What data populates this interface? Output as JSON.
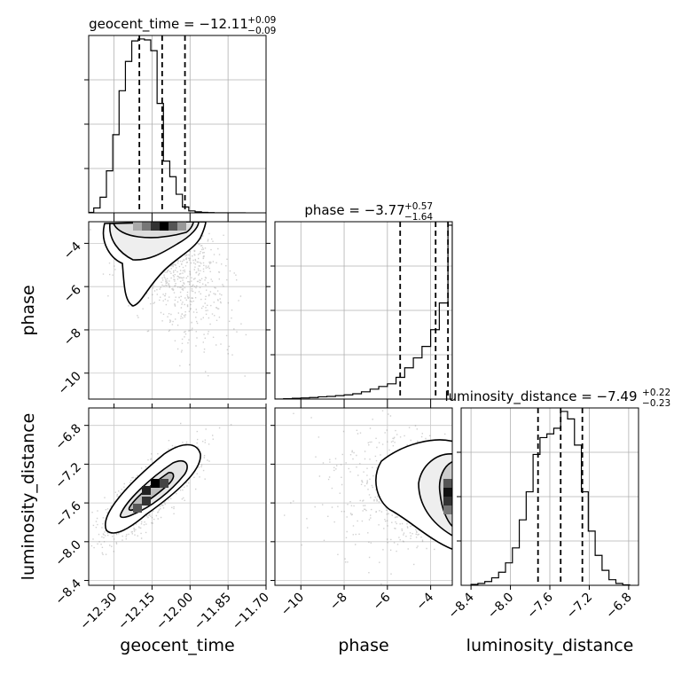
{
  "chart_data": [
    {
      "type": "histogram",
      "param": "geocent_time",
      "title": {
        "prefix": "geocent_time = ",
        "median": "−12.11",
        "plus": "+0.09",
        "minus": "−0.09"
      },
      "xlim": [
        -12.4,
        -11.7
      ],
      "bin_edges": [
        -12.4,
        -12.38,
        -12.355,
        -12.33,
        -12.305,
        -12.28,
        -12.255,
        -12.23,
        -12.205,
        -12.18,
        -12.155,
        -12.13,
        -12.105,
        -12.08,
        -12.055,
        -12.03,
        -12.005,
        -11.98,
        -11.955,
        -11.93,
        -11.905,
        -11.88,
        -11.855,
        -11.83,
        -11.805,
        -11.78
      ],
      "counts": [
        0.5,
        5,
        16,
        43,
        80,
        125,
        155,
        176,
        178,
        177,
        166,
        112,
        53,
        37,
        19,
        6,
        2,
        1,
        0.5,
        0.2,
        0,
        0,
        0,
        0,
        0
      ],
      "quantiles": [
        -12.2,
        -12.11,
        -12.02
      ]
    },
    {
      "type": "histogram",
      "param": "phase",
      "title": {
        "prefix": "phase = ",
        "median": "−3.77",
        "plus": "+0.57",
        "minus": "−1.64"
      },
      "xlim": [
        -11.2,
        -3.0
      ],
      "bin_edges": [
        -11.2,
        -10.8,
        -10.4,
        -10.0,
        -9.6,
        -9.2,
        -8.8,
        -8.4,
        -8.0,
        -7.6,
        -7.2,
        -6.8,
        -6.4,
        -6.0,
        -5.6,
        -5.2,
        -4.8,
        -4.4,
        -4.0,
        -3.6,
        -3.2,
        -3.0
      ],
      "counts": [
        0,
        1,
        2,
        3,
        4,
        6,
        7,
        9,
        11,
        14,
        19,
        26,
        33,
        40,
        57,
        82,
        108,
        138,
        182,
        252,
        456
      ],
      "quantiles": [
        -5.41,
        -3.77,
        -3.2
      ]
    },
    {
      "type": "histogram",
      "param": "luminosity_distance",
      "title": {
        "prefix": "luminosity_distance = ",
        "median": "−7.49",
        "plus": "+0.22",
        "minus": "−0.23"
      },
      "xlim": [
        -8.5,
        -6.7
      ],
      "bin_edges": [
        -8.4,
        -8.33,
        -8.26,
        -8.19,
        -8.12,
        -8.05,
        -7.98,
        -7.91,
        -7.84,
        -7.77,
        -7.7,
        -7.63,
        -7.56,
        -7.49,
        -7.42,
        -7.35,
        -7.28,
        -7.21,
        -7.14,
        -7.07,
        -7.0,
        -6.93,
        -6.86,
        -6.79
      ],
      "counts": [
        1,
        2,
        4,
        8,
        14,
        24,
        40,
        70,
        100,
        140,
        158,
        162,
        168,
        186,
        178,
        150,
        100,
        58,
        32,
        16,
        6,
        2,
        0.5
      ],
      "quantiles": [
        -7.72,
        -7.49,
        -7.27
      ]
    },
    {
      "type": "density2d",
      "x_param": "geocent_time",
      "y_param": "phase",
      "xlim": [
        -12.4,
        -11.7
      ],
      "ylim": [
        -11.2,
        -3.0
      ],
      "peak": [
        -12.12,
        -3.35
      ],
      "contour_levels": 3
    },
    {
      "type": "density2d",
      "x_param": "geocent_time",
      "y_param": "luminosity_distance",
      "xlim": [
        -12.4,
        -11.7
      ],
      "ylim": [
        -8.45,
        -6.62
      ],
      "peak": [
        -12.12,
        -7.49
      ],
      "correlation": 0.9,
      "contour_levels": 3
    },
    {
      "type": "density2d",
      "x_param": "phase",
      "y_param": "luminosity_distance",
      "xlim": [
        -11.2,
        -3.0
      ],
      "ylim": [
        -8.45,
        -6.62
      ],
      "peak": [
        -3.3,
        -7.55
      ],
      "contour_levels": 3
    }
  ],
  "axes": {
    "geocent_time": {
      "label": "geocent_time",
      "ticks": [
        -12.3,
        -12.15,
        -12.0,
        -11.85,
        -11.7
      ],
      "tick_labels": [
        "−12.30",
        "−12.15",
        "−12.00",
        "−11.85",
        "−11.70"
      ]
    },
    "phase": {
      "label": "phase",
      "ticks": [
        -10,
        -8,
        -6,
        -4
      ],
      "tick_labels": [
        "−10",
        "−8",
        "−6",
        "−4"
      ]
    },
    "luminosity_distance": {
      "label": "luminosity_distance",
      "ticks": [
        -8.4,
        -8.0,
        -7.6,
        -7.2,
        -6.8
      ],
      "tick_labels": [
        "−8.4",
        "−8.0",
        "−7.6",
        "−7.2",
        "−6.8"
      ]
    }
  },
  "grid": true
}
